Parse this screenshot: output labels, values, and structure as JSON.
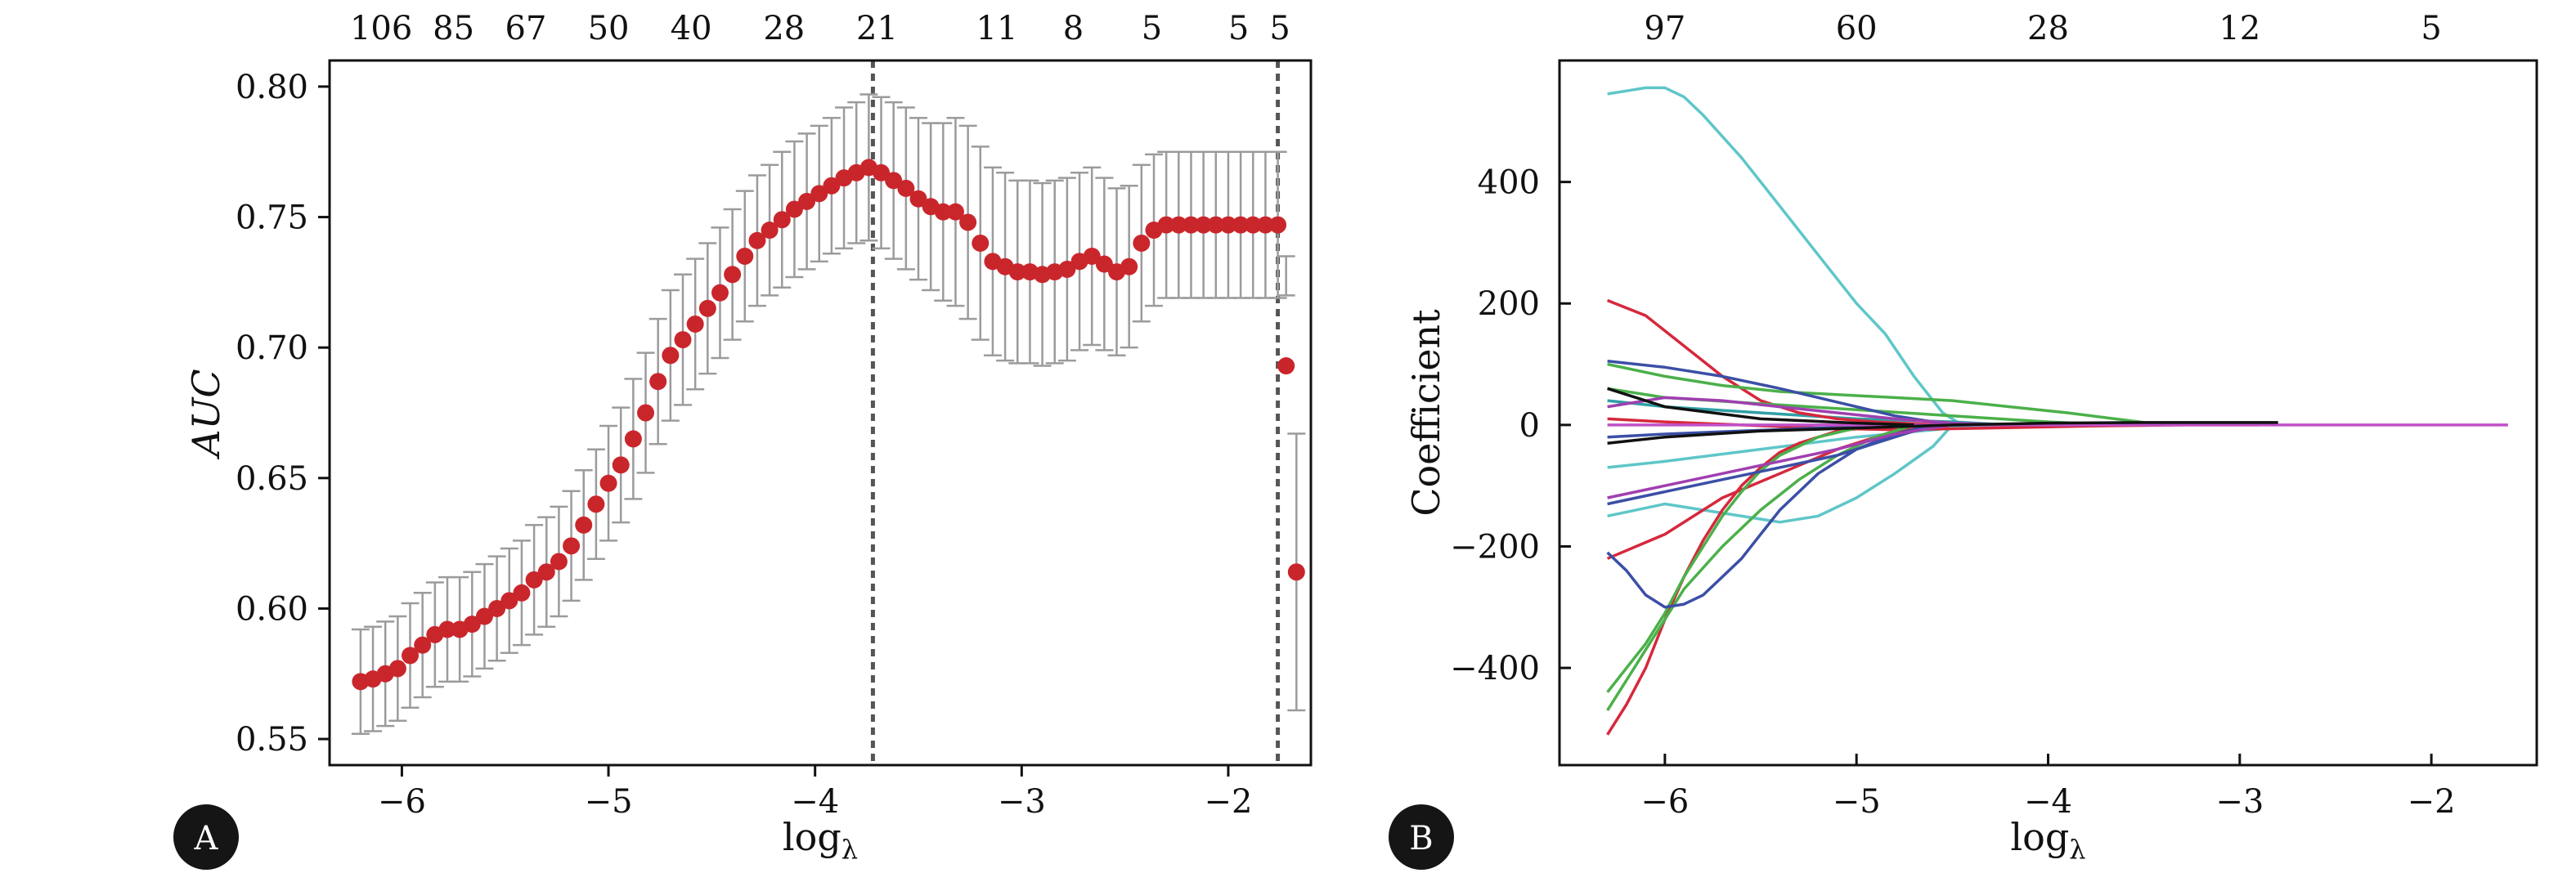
{
  "panels": {
    "a_label": "A",
    "b_label": "B",
    "badge_color": "#151515"
  },
  "chart_data": [
    {
      "type": "scatter",
      "panel": "A",
      "title": "",
      "xlabel": "log",
      "xlabel_sub": "λ",
      "ylabel": "AUC",
      "xlim": [
        -6.35,
        -1.6
      ],
      "ylim": [
        0.54,
        0.81
      ],
      "xticks": [
        -6,
        -5,
        -4,
        -3,
        -2
      ],
      "xtick_labels": [
        "−6",
        "−5",
        "−4",
        "−3",
        "−2"
      ],
      "yticks": [
        0.55,
        0.6,
        0.65,
        0.7,
        0.75,
        0.8
      ],
      "ytick_labels": [
        "0.55",
        "0.60",
        "0.65",
        "0.70",
        "0.75",
        "0.80"
      ],
      "top_axis_labels": [
        "106",
        "85",
        "67",
        "50",
        "40",
        "28",
        "21",
        "11",
        "8",
        "5",
        "5",
        "5"
      ],
      "top_axis_positions": [
        -6.1,
        -5.75,
        -5.4,
        -5.0,
        -4.6,
        -4.15,
        -3.7,
        -3.12,
        -2.75,
        -2.37,
        -1.95,
        -1.75
      ],
      "vlines": [
        -3.72,
        -1.76
      ],
      "marker_color": "#c9262c",
      "errorbar_color": "#9b9b9b",
      "guide_color": "#555555",
      "points_x": [
        -6.2,
        -6.14,
        -6.08,
        -6.02,
        -5.96,
        -5.9,
        -5.84,
        -5.78,
        -5.72,
        -5.66,
        -5.6,
        -5.54,
        -5.48,
        -5.42,
        -5.36,
        -5.3,
        -5.24,
        -5.18,
        -5.12,
        -5.06,
        -5.0,
        -4.94,
        -4.88,
        -4.82,
        -4.76,
        -4.7,
        -4.64,
        -4.58,
        -4.52,
        -4.46,
        -4.4,
        -4.34,
        -4.28,
        -4.22,
        -4.16,
        -4.1,
        -4.04,
        -3.98,
        -3.92,
        -3.86,
        -3.8,
        -3.74,
        -3.68,
        -3.62,
        -3.56,
        -3.5,
        -3.44,
        -3.38,
        -3.32,
        -3.26,
        -3.2,
        -3.14,
        -3.08,
        -3.02,
        -2.96,
        -2.9,
        -2.84,
        -2.78,
        -2.72,
        -2.66,
        -2.6,
        -2.54,
        -2.48,
        -2.42,
        -2.36,
        -2.3,
        -2.24,
        -2.18,
        -2.12,
        -2.06,
        -2.0,
        -1.94,
        -1.88,
        -1.82,
        -1.76,
        -1.72,
        -1.67
      ],
      "points_y": [
        0.572,
        0.573,
        0.575,
        0.577,
        0.582,
        0.586,
        0.59,
        0.592,
        0.592,
        0.594,
        0.597,
        0.6,
        0.603,
        0.606,
        0.611,
        0.614,
        0.618,
        0.624,
        0.632,
        0.64,
        0.648,
        0.655,
        0.665,
        0.675,
        0.687,
        0.697,
        0.703,
        0.709,
        0.715,
        0.721,
        0.728,
        0.735,
        0.741,
        0.745,
        0.749,
        0.753,
        0.756,
        0.759,
        0.762,
        0.765,
        0.767,
        0.769,
        0.767,
        0.764,
        0.761,
        0.757,
        0.754,
        0.752,
        0.752,
        0.748,
        0.74,
        0.733,
        0.731,
        0.729,
        0.729,
        0.728,
        0.729,
        0.73,
        0.733,
        0.735,
        0.732,
        0.729,
        0.731,
        0.74,
        0.745,
        0.747,
        0.747,
        0.747,
        0.747,
        0.747,
        0.747,
        0.747,
        0.747,
        0.747,
        0.747,
        0.693,
        0.614
      ],
      "err_lo": [
        0.552,
        0.553,
        0.555,
        0.557,
        0.562,
        0.566,
        0.57,
        0.572,
        0.572,
        0.574,
        0.577,
        0.58,
        0.583,
        0.586,
        0.59,
        0.593,
        0.597,
        0.603,
        0.611,
        0.619,
        0.626,
        0.633,
        0.642,
        0.652,
        0.663,
        0.672,
        0.678,
        0.684,
        0.69,
        0.696,
        0.703,
        0.71,
        0.716,
        0.72,
        0.723,
        0.727,
        0.73,
        0.733,
        0.736,
        0.738,
        0.74,
        0.741,
        0.738,
        0.734,
        0.73,
        0.726,
        0.722,
        0.718,
        0.716,
        0.711,
        0.703,
        0.697,
        0.695,
        0.694,
        0.694,
        0.693,
        0.694,
        0.695,
        0.699,
        0.701,
        0.699,
        0.697,
        0.7,
        0.71,
        0.716,
        0.719,
        0.719,
        0.719,
        0.719,
        0.719,
        0.719,
        0.719,
        0.719,
        0.719,
        0.719,
        0.72,
        0.561
      ],
      "err_hi": [
        0.592,
        0.593,
        0.595,
        0.597,
        0.602,
        0.606,
        0.61,
        0.612,
        0.612,
        0.614,
        0.617,
        0.62,
        0.623,
        0.626,
        0.632,
        0.635,
        0.639,
        0.645,
        0.653,
        0.661,
        0.67,
        0.677,
        0.688,
        0.698,
        0.711,
        0.722,
        0.728,
        0.734,
        0.74,
        0.746,
        0.753,
        0.76,
        0.766,
        0.77,
        0.775,
        0.779,
        0.782,
        0.785,
        0.788,
        0.792,
        0.794,
        0.797,
        0.796,
        0.794,
        0.792,
        0.788,
        0.786,
        0.786,
        0.788,
        0.785,
        0.777,
        0.769,
        0.767,
        0.764,
        0.764,
        0.763,
        0.764,
        0.765,
        0.767,
        0.769,
        0.765,
        0.761,
        0.762,
        0.77,
        0.774,
        0.775,
        0.775,
        0.775,
        0.775,
        0.775,
        0.775,
        0.775,
        0.775,
        0.775,
        0.775,
        0.735,
        0.667
      ]
    },
    {
      "type": "line",
      "panel": "B",
      "title": "",
      "xlabel": "log",
      "xlabel_sub": "λ",
      "ylabel": "Coefficient",
      "xlim": [
        -6.55,
        -1.45
      ],
      "ylim": [
        -560,
        600
      ],
      "xticks": [
        -6,
        -5,
        -4,
        -3,
        -2
      ],
      "xtick_labels": [
        "−6",
        "−5",
        "−4",
        "−3",
        "−2"
      ],
      "yticks": [
        -400,
        -200,
        0,
        200,
        400
      ],
      "ytick_labels": [
        "−400",
        "−200",
        "0",
        "200",
        "400"
      ],
      "top_axis_labels": [
        "97",
        "60",
        "28",
        "12",
        "5"
      ],
      "top_axis_positions": [
        -6.0,
        -5.0,
        -4.0,
        -3.0,
        -2.0
      ],
      "series": [
        {
          "color": "#5fc6c8",
          "x": [
            -6.3,
            -6.2,
            -6.1,
            -6.0,
            -5.9,
            -5.8,
            -5.6,
            -5.4,
            -5.2,
            -5.0,
            -4.85,
            -4.7,
            -4.55,
            -4.45,
            -4.35,
            -4.2,
            -4.0
          ],
          "y": [
            545,
            550,
            555,
            555,
            540,
            510,
            440,
            360,
            280,
            200,
            150,
            80,
            20,
            0,
            0,
            0,
            0
          ]
        },
        {
          "color": "#5fc6c8",
          "x": [
            -6.3,
            -6.0,
            -5.7,
            -5.4,
            -5.2,
            -5.0,
            -4.8,
            -4.6,
            -4.5,
            -4.3
          ],
          "y": [
            -150,
            -130,
            -145,
            -160,
            -150,
            -120,
            -80,
            -35,
            0,
            0
          ]
        },
        {
          "color": "#5fc6c8",
          "x": [
            -6.3,
            -6.0,
            -5.5,
            -5.0,
            -4.5,
            -4.0
          ],
          "y": [
            -70,
            -60,
            -40,
            -20,
            -5,
            0
          ]
        },
        {
          "color": "#2f9fa5",
          "x": [
            -6.3,
            -6.0,
            -5.5,
            -5.0,
            -4.5,
            -4.2
          ],
          "y": [
            40,
            30,
            20,
            10,
            5,
            0
          ]
        },
        {
          "color": "#d6283c",
          "x": [
            -6.3,
            -6.1,
            -5.9,
            -5.7,
            -5.5,
            -5.3,
            -5.1,
            -4.9,
            -4.7,
            -4.5
          ],
          "y": [
            205,
            180,
            130,
            80,
            40,
            20,
            10,
            5,
            2,
            0
          ]
        },
        {
          "color": "#d6283c",
          "x": [
            -6.3,
            -6.2,
            -6.1,
            -6.0,
            -5.9,
            -5.8,
            -5.7,
            -5.6,
            -5.5,
            -5.4,
            -5.3,
            -5.1,
            -4.9,
            -4.6
          ],
          "y": [
            -510,
            -460,
            -400,
            -320,
            -250,
            -190,
            -140,
            -100,
            -70,
            -45,
            -30,
            -10,
            -3,
            0
          ]
        },
        {
          "color": "#d6283c",
          "x": [
            -6.3,
            -6.0,
            -5.7,
            -5.4,
            -5.1,
            -4.8,
            -4.5
          ],
          "y": [
            -220,
            -180,
            -120,
            -80,
            -40,
            -10,
            0
          ]
        },
        {
          "color": "#d6283c",
          "x": [
            -6.3,
            -6.0,
            -5.6,
            -5.2,
            -4.8,
            -4.3,
            -3.8,
            -3.3,
            -2.9
          ],
          "y": [
            10,
            5,
            0,
            -5,
            -8,
            -5,
            -2,
            0,
            0
          ]
        },
        {
          "color": "#4bb04a",
          "x": [
            -6.3,
            -6.2,
            -6.1,
            -6.0,
            -5.9,
            -5.8,
            -5.7,
            -5.6,
            -5.5,
            -5.4,
            -5.2,
            -5.0,
            -4.8
          ],
          "y": [
            -440,
            -400,
            -360,
            -310,
            -250,
            -200,
            -150,
            -110,
            -75,
            -50,
            -20,
            -5,
            0
          ]
        },
        {
          "color": "#4bb04a",
          "x": [
            -6.3,
            -6.2,
            -6.1,
            -6.0,
            -5.9,
            -5.7,
            -5.5,
            -5.3,
            -5.1,
            -4.9,
            -4.7
          ],
          "y": [
            -470,
            -420,
            -370,
            -320,
            -270,
            -200,
            -140,
            -90,
            -50,
            -20,
            0
          ]
        },
        {
          "color": "#4bb04a",
          "x": [
            -6.3,
            -6.0,
            -5.7,
            -5.4,
            -5.1,
            -4.8,
            -4.5,
            -4.2,
            -3.9,
            -3.6,
            -3.4
          ],
          "y": [
            100,
            80,
            65,
            55,
            50,
            45,
            40,
            30,
            20,
            8,
            0
          ]
        },
        {
          "color": "#4bb04a",
          "x": [
            -6.3,
            -6.0,
            -5.5,
            -5.0,
            -4.5,
            -4.0,
            -3.6
          ],
          "y": [
            60,
            45,
            35,
            25,
            15,
            5,
            0
          ]
        },
        {
          "color": "#3b4fa6",
          "x": [
            -6.3,
            -6.2,
            -6.1,
            -6.0,
            -5.9,
            -5.8,
            -5.7,
            -5.6,
            -5.5,
            -5.4,
            -5.3,
            -5.2,
            -5.0,
            -4.8,
            -4.6
          ],
          "y": [
            -210,
            -240,
            -280,
            -300,
            -295,
            -280,
            -250,
            -220,
            -180,
            -140,
            -110,
            -80,
            -40,
            -15,
            0
          ]
        },
        {
          "color": "#3b4fa6",
          "x": [
            -6.3,
            -6.0,
            -5.7,
            -5.4,
            -5.2,
            -5.0,
            -4.8,
            -4.6,
            -4.5
          ],
          "y": [
            105,
            95,
            80,
            60,
            45,
            30,
            15,
            5,
            0
          ]
        },
        {
          "color": "#3b4fa6",
          "x": [
            -6.3,
            -6.0,
            -5.7,
            -5.4,
            -5.1,
            -4.8,
            -4.6
          ],
          "y": [
            -130,
            -110,
            -90,
            -70,
            -50,
            -20,
            0
          ]
        },
        {
          "color": "#3b4fa6",
          "x": [
            -6.3,
            -6.0,
            -5.6,
            -5.2,
            -4.8,
            -4.4
          ],
          "y": [
            -20,
            -15,
            -10,
            -5,
            -2,
            0
          ]
        },
        {
          "color": "#a03fb0",
          "x": [
            -6.3,
            -6.0,
            -5.7,
            -5.4,
            -5.1,
            -4.8,
            -4.5,
            -4.2
          ],
          "y": [
            30,
            45,
            40,
            30,
            20,
            10,
            3,
            0
          ]
        },
        {
          "color": "#a03fb0",
          "x": [
            -6.3,
            -6.0,
            -5.7,
            -5.4,
            -5.1,
            -4.8,
            -4.5
          ],
          "y": [
            -120,
            -100,
            -80,
            -60,
            -40,
            -15,
            0
          ]
        },
        {
          "color": "#c050c8",
          "x": [
            -6.3,
            -5.5,
            -4.5,
            -3.5,
            -2.5,
            -1.6
          ],
          "y": [
            0,
            0,
            0,
            0,
            0,
            0
          ]
        },
        {
          "color": "#111111",
          "x": [
            -6.3,
            -6.0,
            -5.5,
            -5.0,
            -4.5,
            -4.0,
            -3.5,
            -3.0,
            -2.8
          ],
          "y": [
            -30,
            -20,
            -10,
            -5,
            0,
            3,
            4,
            4,
            4
          ]
        },
        {
          "color": "#111111",
          "x": [
            -6.3,
            -6.0,
            -5.5,
            -5.0,
            -4.7
          ],
          "y": [
            60,
            30,
            10,
            3,
            0
          ]
        }
      ]
    }
  ]
}
